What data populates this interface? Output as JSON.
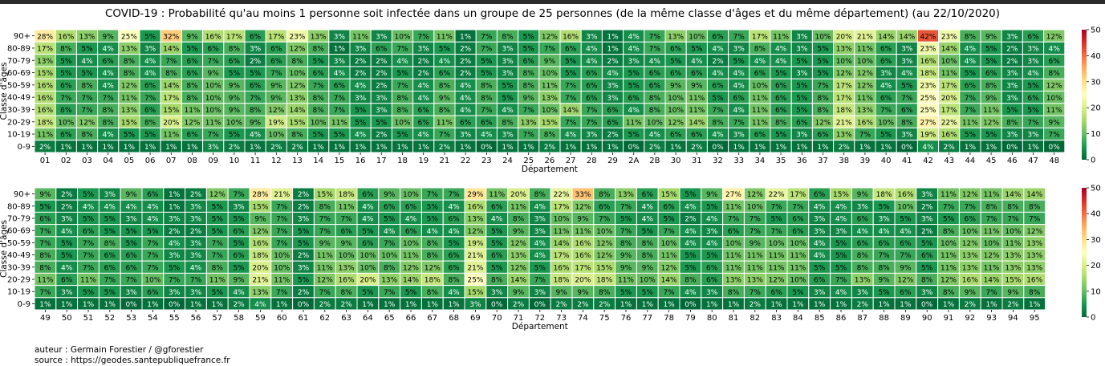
{
  "title": "COVID-19 : Probabilité qu'au moins 1 personne soit infectée dans un groupe de 25 personnes (de la même classe d'âges et du même département) (au 22/10/2020)",
  "credits": {
    "author": "auteur : Germain Forestier / @gforestier",
    "source": "source : https://geodes.santepubliquefrance.fr"
  },
  "chart_data": [
    {
      "type": "heatmap",
      "xlabel": "Département",
      "ylabel": "Classe d'âges",
      "value_unit": "%",
      "colormap": "RdYlGn_r",
      "colorbar": {
        "min": 0,
        "max": 50,
        "ticks": [
          0,
          10,
          20,
          30,
          40,
          50
        ]
      },
      "grid": true,
      "age_classes": [
        "90+",
        "80-89",
        "70-79",
        "60-69",
        "50-59",
        "40-49",
        "30-39",
        "20-29",
        "10-19",
        "0-9"
      ],
      "departments": [
        "01",
        "02",
        "03",
        "04",
        "05",
        "06",
        "07",
        "08",
        "09",
        "10",
        "11",
        "12",
        "13",
        "14",
        "15",
        "16",
        "17",
        "18",
        "19",
        "21",
        "22",
        "23",
        "24",
        "25",
        "26",
        "27",
        "28",
        "29",
        "2A",
        "2B",
        "30",
        "31",
        "32",
        "33",
        "34",
        "35",
        "36",
        "37",
        "38",
        "39",
        "40",
        "41",
        "42",
        "43",
        "44",
        "45",
        "46",
        "47",
        "48"
      ],
      "values": [
        [
          28,
          16,
          13,
          9,
          25,
          5,
          32,
          9,
          16,
          17,
          6,
          17,
          23,
          13,
          3,
          11,
          3,
          10,
          7,
          11,
          1,
          7,
          8,
          5,
          12,
          16,
          3,
          1,
          4,
          7,
          13,
          10,
          6,
          7,
          17,
          11,
          3,
          10,
          20,
          21,
          14,
          14,
          42,
          23,
          8,
          9,
          3,
          6,
          12
        ],
        [
          17,
          8,
          5,
          4,
          13,
          3,
          14,
          5,
          6,
          8,
          3,
          6,
          12,
          8,
          1,
          3,
          6,
          7,
          3,
          5,
          2,
          7,
          3,
          5,
          7,
          6,
          4,
          1,
          4,
          7,
          6,
          5,
          4,
          3,
          8,
          4,
          3,
          5,
          13,
          11,
          6,
          3,
          23,
          14,
          4,
          5,
          2,
          3,
          4
        ],
        [
          13,
          5,
          4,
          6,
          8,
          4,
          7,
          6,
          7,
          6,
          2,
          6,
          8,
          5,
          3,
          2,
          2,
          4,
          2,
          4,
          2,
          5,
          3,
          6,
          9,
          5,
          4,
          2,
          3,
          4,
          5,
          4,
          2,
          5,
          4,
          4,
          5,
          5,
          10,
          10,
          6,
          3,
          16,
          10,
          4,
          5,
          2,
          3,
          6
        ],
        [
          15,
          5,
          5,
          4,
          8,
          4,
          8,
          6,
          9,
          5,
          5,
          7,
          10,
          6,
          4,
          2,
          2,
          5,
          2,
          6,
          2,
          5,
          3,
          8,
          10,
          5,
          6,
          4,
          5,
          6,
          6,
          6,
          4,
          4,
          6,
          5,
          3,
          5,
          12,
          12,
          3,
          4,
          18,
          11,
          5,
          6,
          3,
          4,
          8
        ],
        [
          16,
          6,
          8,
          4,
          12,
          6,
          14,
          8,
          10,
          9,
          6,
          9,
          12,
          7,
          6,
          4,
          2,
          7,
          4,
          8,
          4,
          8,
          5,
          8,
          11,
          7,
          6,
          3,
          5,
          6,
          9,
          9,
          6,
          4,
          10,
          6,
          5,
          7,
          17,
          12,
          4,
          5,
          23,
          17,
          6,
          8,
          3,
          5,
          12
        ],
        [
          16,
          7,
          7,
          7,
          11,
          7,
          17,
          8,
          10,
          9,
          7,
          9,
          13,
          8,
          7,
          3,
          3,
          8,
          4,
          9,
          4,
          8,
          5,
          9,
          13,
          7,
          6,
          3,
          6,
          8,
          10,
          11,
          5,
          6,
          11,
          6,
          5,
          8,
          17,
          11,
          6,
          7,
          25,
          20,
          7,
          9,
          3,
          6,
          10
        ],
        [
          16,
          6,
          7,
          8,
          13,
          6,
          15,
          11,
          10,
          9,
          8,
          12,
          14,
          8,
          7,
          5,
          3,
          8,
          6,
          8,
          4,
          7,
          4,
          7,
          10,
          14,
          7,
          6,
          4,
          8,
          10,
          11,
          7,
          4,
          11,
          6,
          5,
          8,
          18,
          13,
          7,
          6,
          25,
          17,
          7,
          11,
          5,
          5,
          11
        ],
        [
          18,
          10,
          12,
          8,
          15,
          8,
          20,
          12,
          11,
          10,
          9,
          19,
          15,
          10,
          11,
          5,
          5,
          10,
          6,
          11,
          6,
          6,
          8,
          13,
          15,
          7,
          7,
          6,
          11,
          10,
          12,
          14,
          8,
          7,
          11,
          8,
          6,
          12,
          21,
          16,
          10,
          8,
          27,
          22,
          11,
          12,
          8,
          7,
          9
        ],
        [
          11,
          6,
          8,
          4,
          5,
          5,
          11,
          6,
          7,
          5,
          4,
          10,
          8,
          5,
          5,
          4,
          2,
          5,
          4,
          7,
          3,
          4,
          3,
          7,
          8,
          4,
          3,
          2,
          5,
          4,
          6,
          6,
          4,
          3,
          6,
          5,
          3,
          6,
          13,
          7,
          5,
          3,
          19,
          16,
          5,
          5,
          3,
          3,
          7
        ],
        [
          2,
          1,
          1,
          1,
          1,
          1,
          1,
          1,
          3,
          2,
          1,
          2,
          2,
          1,
          1,
          1,
          1,
          1,
          1,
          2,
          1,
          0,
          1,
          1,
          2,
          1,
          1,
          1,
          0,
          2,
          1,
          2,
          0,
          1,
          1,
          1,
          1,
          1,
          2,
          1,
          1,
          0,
          4,
          2,
          1,
          1,
          0,
          1,
          0
        ]
      ]
    },
    {
      "type": "heatmap",
      "xlabel": "Département",
      "ylabel": "Classe d'âges",
      "value_unit": "%",
      "colormap": "RdYlGn_r",
      "colorbar": {
        "min": 0,
        "max": 50,
        "ticks": [
          0,
          10,
          20,
          30,
          40,
          50
        ]
      },
      "grid": true,
      "age_classes": [
        "90+",
        "80-89",
        "70-79",
        "60-69",
        "50-59",
        "40-49",
        "30-39",
        "20-29",
        "10-19",
        "0-9"
      ],
      "departments": [
        "49",
        "50",
        "51",
        "52",
        "53",
        "54",
        "55",
        "56",
        "57",
        "58",
        "59",
        "60",
        "61",
        "62",
        "63",
        "64",
        "65",
        "66",
        "67",
        "68",
        "69",
        "70",
        "71",
        "72",
        "73",
        "74",
        "75",
        "76",
        "77",
        "78",
        "79",
        "80",
        "81",
        "82",
        "83",
        "84",
        "85",
        "86",
        "87",
        "88",
        "89",
        "90",
        "91",
        "92",
        "93",
        "94",
        "95"
      ],
      "values": [
        [
          9,
          2,
          5,
          3,
          9,
          6,
          1,
          2,
          12,
          7,
          28,
          21,
          2,
          15,
          18,
          6,
          9,
          10,
          7,
          7,
          29,
          11,
          20,
          8,
          22,
          33,
          8,
          13,
          6,
          15,
          5,
          9,
          27,
          12,
          22,
          17,
          6,
          15,
          9,
          18,
          16,
          3,
          11,
          12,
          11,
          14,
          14
        ],
        [
          5,
          2,
          4,
          4,
          4,
          4,
          1,
          3,
          5,
          3,
          15,
          7,
          2,
          8,
          11,
          4,
          6,
          6,
          5,
          4,
          16,
          6,
          11,
          4,
          17,
          12,
          6,
          7,
          4,
          6,
          4,
          5,
          11,
          10,
          7,
          7,
          4,
          4,
          3,
          5,
          10,
          2,
          7,
          7,
          8,
          8,
          8
        ],
        [
          6,
          3,
          5,
          5,
          3,
          4,
          3,
          3,
          5,
          5,
          9,
          7,
          3,
          7,
          7,
          4,
          5,
          4,
          5,
          6,
          13,
          4,
          8,
          3,
          10,
          9,
          7,
          5,
          4,
          5,
          2,
          4,
          7,
          7,
          5,
          6,
          3,
          4,
          6,
          3,
          5,
          3,
          5,
          6,
          7,
          7,
          7
        ],
        [
          7,
          4,
          6,
          5,
          5,
          5,
          2,
          2,
          5,
          6,
          12,
          7,
          5,
          7,
          6,
          5,
          4,
          6,
          4,
          4,
          12,
          5,
          9,
          3,
          11,
          11,
          10,
          7,
          5,
          7,
          4,
          3,
          6,
          7,
          7,
          6,
          3,
          3,
          4,
          4,
          4,
          2,
          8,
          10,
          11,
          10,
          12
        ],
        [
          7,
          5,
          7,
          8,
          5,
          7,
          4,
          3,
          7,
          5,
          16,
          7,
          5,
          9,
          9,
          6,
          7,
          10,
          8,
          5,
          19,
          5,
          12,
          4,
          14,
          16,
          12,
          8,
          8,
          10,
          4,
          4,
          10,
          9,
          10,
          10,
          4,
          5,
          6,
          6,
          6,
          5,
          10,
          12,
          10,
          11,
          13
        ],
        [
          8,
          5,
          7,
          6,
          6,
          7,
          3,
          3,
          7,
          6,
          18,
          10,
          2,
          11,
          10,
          10,
          10,
          11,
          8,
          6,
          21,
          6,
          13,
          4,
          17,
          16,
          12,
          9,
          8,
          11,
          5,
          5,
          11,
          11,
          11,
          11,
          4,
          5,
          8,
          7,
          7,
          6,
          11,
          13,
          12,
          13,
          13
        ],
        [
          8,
          4,
          7,
          6,
          6,
          7,
          5,
          4,
          8,
          5,
          20,
          10,
          3,
          11,
          13,
          10,
          8,
          12,
          12,
          6,
          21,
          5,
          12,
          5,
          16,
          17,
          15,
          9,
          9,
          12,
          5,
          6,
          11,
          11,
          11,
          11,
          5,
          5,
          8,
          8,
          9,
          5,
          11,
          13,
          11,
          13,
          13
        ],
        [
          11,
          6,
          11,
          7,
          7,
          10,
          7,
          7,
          11,
          9,
          21,
          11,
          5,
          12,
          16,
          20,
          13,
          14,
          18,
          8,
          25,
          8,
          14,
          7,
          18,
          20,
          18,
          11,
          10,
          14,
          8,
          6,
          13,
          13,
          12,
          10,
          6,
          7,
          13,
          9,
          12,
          8,
          12,
          16,
          14,
          15,
          16
        ],
        [
          7,
          3,
          5,
          5,
          3,
          6,
          3,
          3,
          5,
          4,
          13,
          7,
          2,
          7,
          8,
          5,
          7,
          5,
          8,
          4,
          15,
          3,
          9,
          3,
          9,
          9,
          8,
          5,
          5,
          7,
          4,
          3,
          8,
          7,
          6,
          5,
          3,
          4,
          3,
          5,
          6,
          3,
          8,
          9,
          7,
          9,
          8
        ],
        [
          1,
          1,
          1,
          1,
          0,
          1,
          0,
          1,
          1,
          2,
          4,
          1,
          0,
          2,
          2,
          1,
          1,
          1,
          1,
          1,
          3,
          0,
          2,
          0,
          2,
          2,
          2,
          1,
          1,
          1,
          0,
          1,
          1,
          2,
          1,
          1,
          1,
          1,
          2,
          1,
          1,
          0,
          1,
          2,
          1,
          2,
          1
        ]
      ]
    }
  ]
}
